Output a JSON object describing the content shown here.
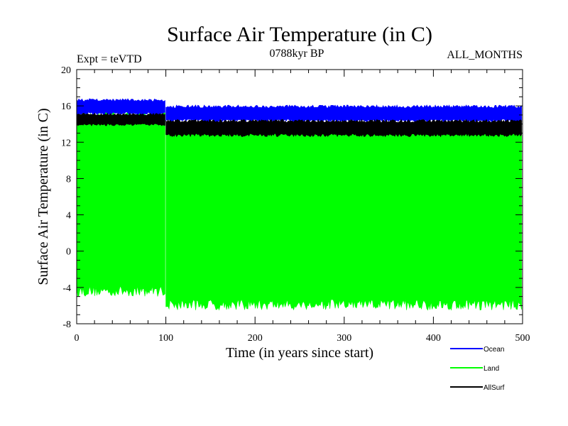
{
  "chart_data": {
    "type": "line",
    "title": "Surface Air Temperature (in C)",
    "subtitle_left": "Expt = teVTD",
    "subtitle_center": "0788kyr BP",
    "subtitle_right": "ALL_MONTHS",
    "xlabel": "Time (in years since start)",
    "ylabel": "Surface Air Temperature (in C)",
    "xlim": [
      0,
      500
    ],
    "ylim": [
      -8,
      20
    ],
    "x_ticks": [
      0,
      100,
      200,
      300,
      400,
      500
    ],
    "y_ticks": [
      -8,
      -4,
      0,
      4,
      8,
      12,
      16,
      20
    ],
    "grid": false,
    "legend_position": "bottom-right",
    "series": [
      {
        "name": "Ocean",
        "color": "#0000ff",
        "segments": [
          {
            "x": [
              0,
              100
            ],
            "min": 15.0,
            "max": 16.8
          },
          {
            "x": [
              100,
              500
            ],
            "min": 14.2,
            "max": 16.1
          }
        ]
      },
      {
        "name": "Land",
        "color": "#00ff00",
        "segments": [
          {
            "x": [
              0,
              100
            ],
            "min": -5.0,
            "max": 15.5
          },
          {
            "x": [
              100,
              500
            ],
            "min": -6.5,
            "max": 14.2
          }
        ]
      },
      {
        "name": "AllSurf",
        "color": "#000000",
        "segments": [
          {
            "x": [
              0,
              100
            ],
            "min": 13.8,
            "max": 15.2
          },
          {
            "x": [
              100,
              500
            ],
            "min": 12.6,
            "max": 14.5
          }
        ]
      }
    ]
  }
}
